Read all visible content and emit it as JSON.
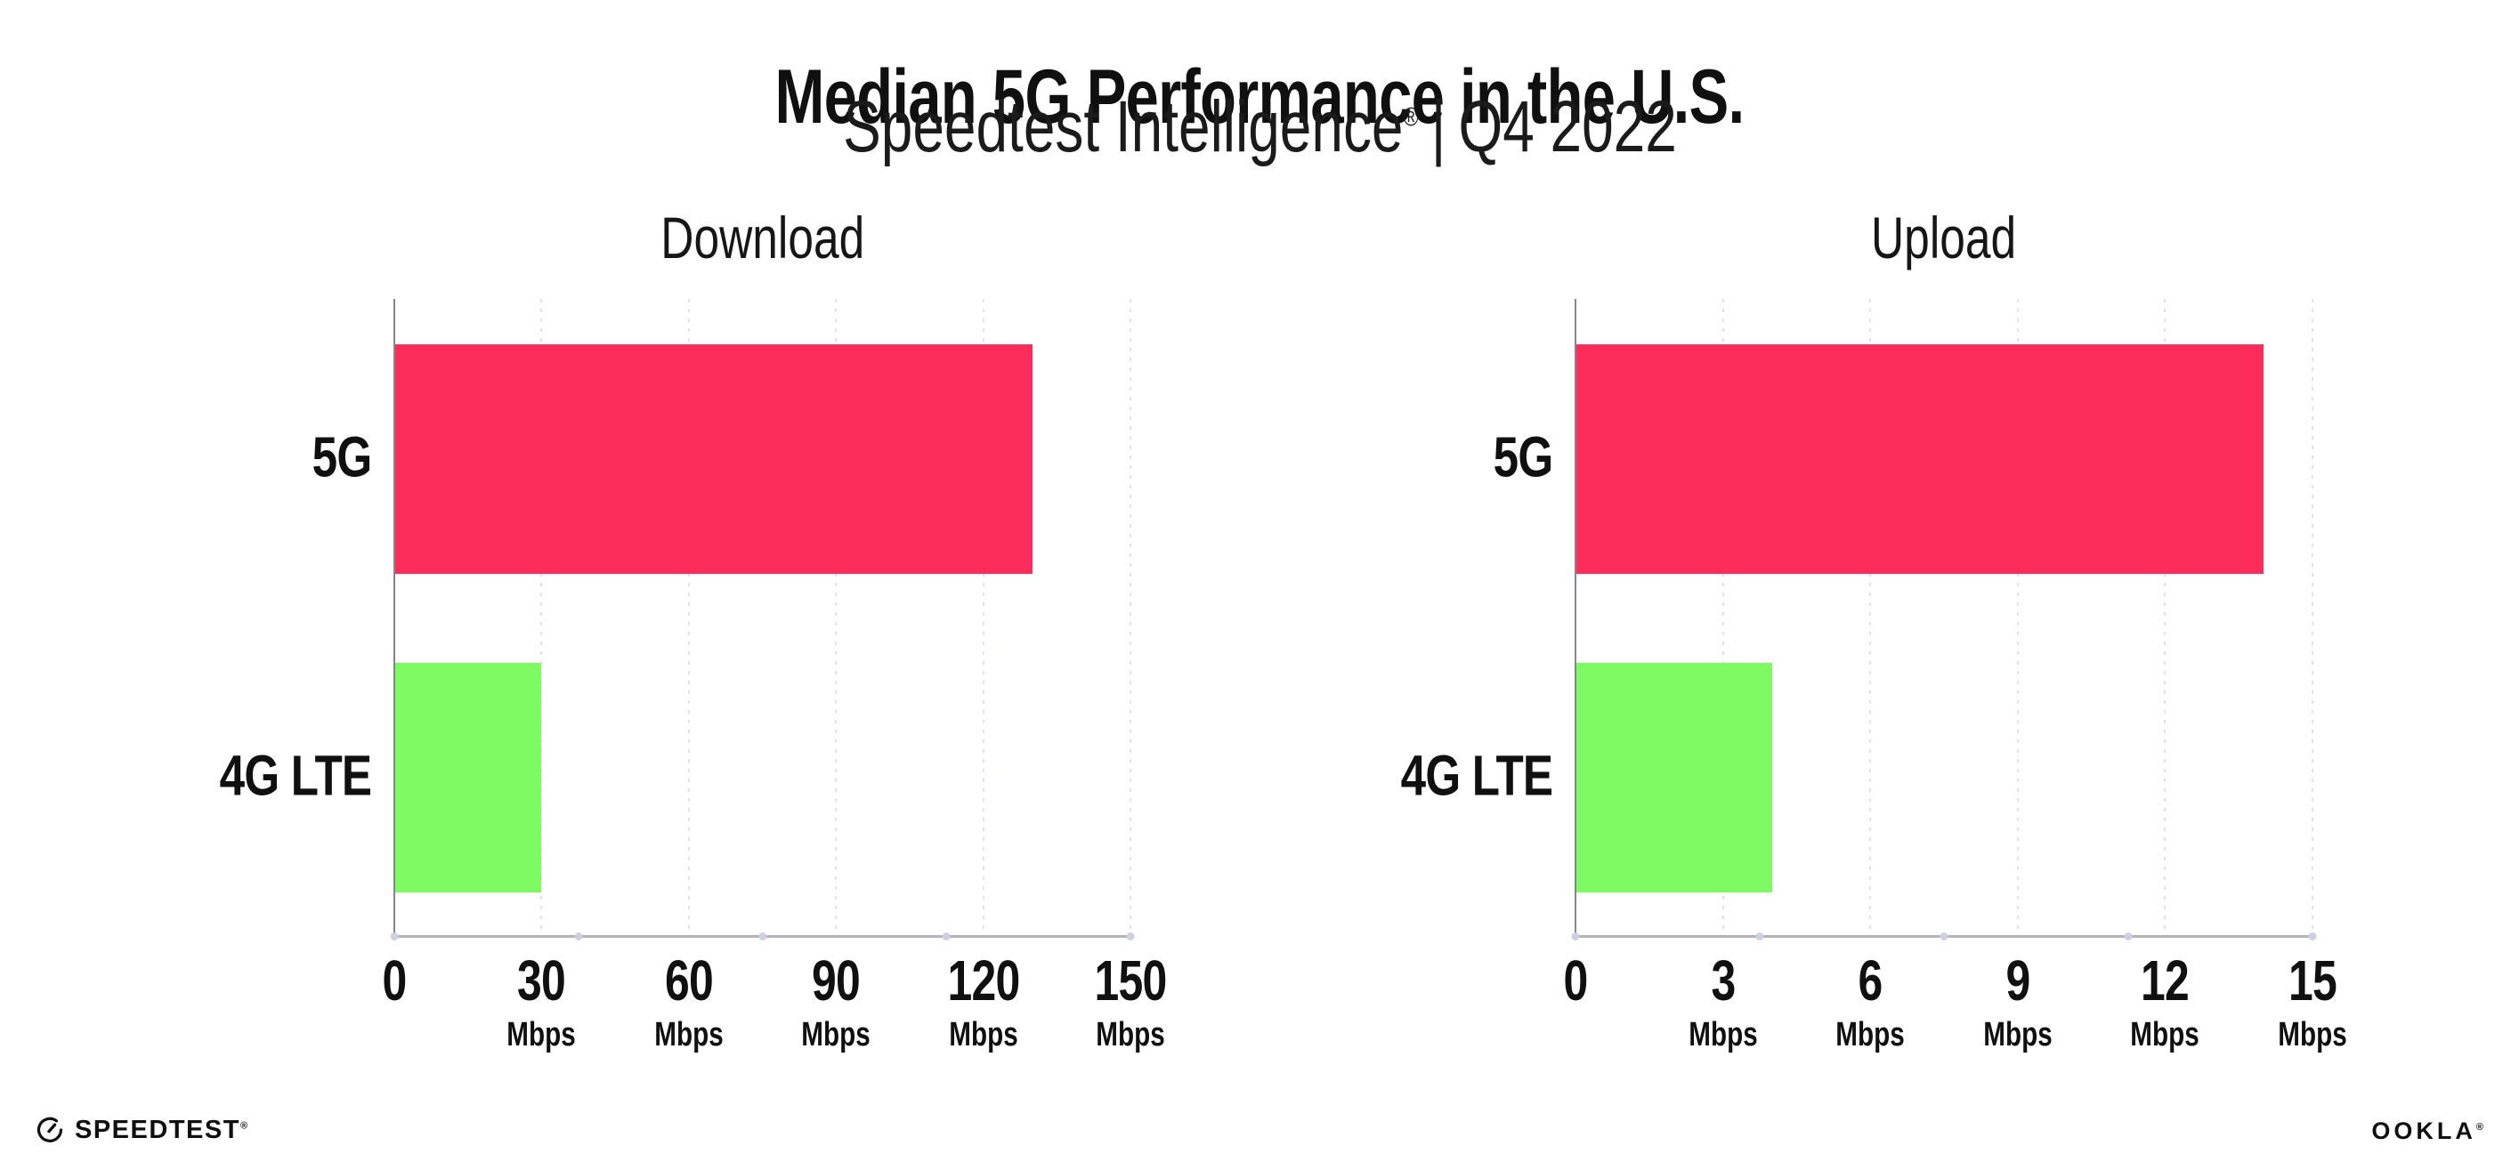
{
  "header": {
    "title": "Median 5G Performance in the U.S.",
    "subtitle": {
      "product": "Speedtest Intelligence",
      "registered": "®",
      "separator": "|",
      "period": "Q4 2022"
    }
  },
  "colors": {
    "bar_5g": "#fd2c5a",
    "bar_4g_lte": "#7efb63",
    "gridline": "#dfe2ee",
    "x_axis": "#b3b3b8",
    "y_axis": "#85858d",
    "axis_dot": "#ccd1e2",
    "text": "#101010"
  },
  "chart_data": [
    {
      "type": "bar",
      "orientation": "horizontal",
      "title": "Download",
      "categories": [
        "5G",
        "4G LTE"
      ],
      "values": [
        130,
        30
      ],
      "unit": "Mbps",
      "xlim": [
        0,
        150
      ],
      "xticks": [
        0,
        30,
        60,
        90,
        120,
        150
      ],
      "bar_colors": [
        "#fd2c5a",
        "#7efb63"
      ],
      "grid": "dotted vertical gridlines at each tick",
      "legend": "none"
    },
    {
      "type": "bar",
      "orientation": "horizontal",
      "title": "Upload",
      "categories": [
        "5G",
        "4G LTE"
      ],
      "values": [
        14,
        4
      ],
      "unit": "Mbps",
      "xlim": [
        0,
        15
      ],
      "xticks": [
        0,
        3,
        6,
        9,
        12,
        15
      ],
      "bar_colors": [
        "#fd2c5a",
        "#7efb63"
      ],
      "grid": "dotted vertical gridlines at each tick",
      "legend": "none"
    }
  ],
  "footer": {
    "speedtest_label": "SPEEDTEST",
    "speedtest_mark": "®",
    "ookla_label": "OOKLA",
    "ookla_mark": "®"
  }
}
